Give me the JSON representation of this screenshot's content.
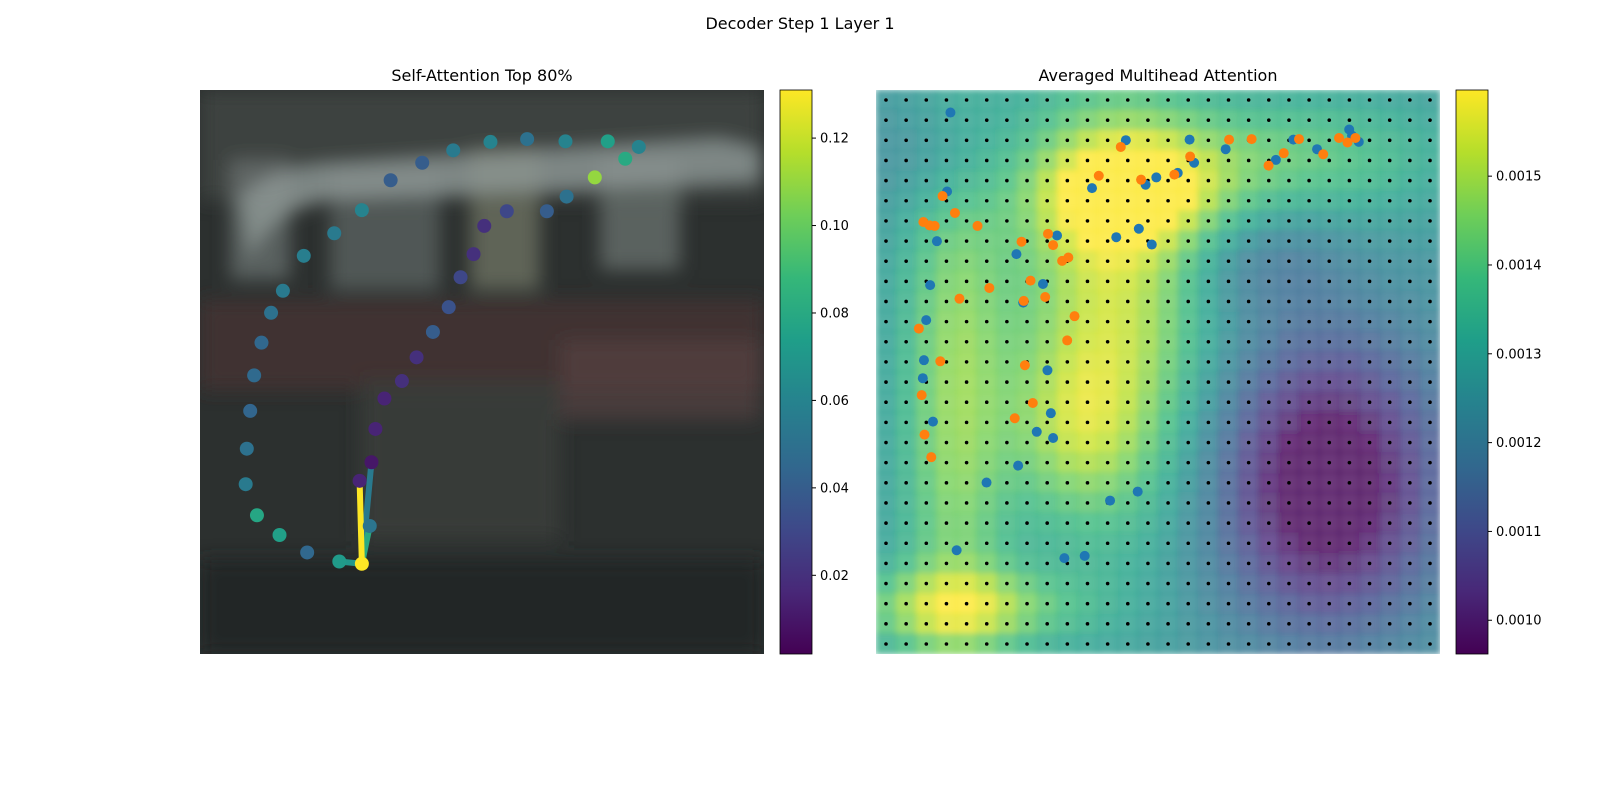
{
  "suptitle": "Decoder Step 1 Layer 1",
  "colors": {
    "viridis": [
      "#440154",
      "#482878",
      "#3e4989",
      "#31688e",
      "#26828e",
      "#1f9e89",
      "#35b779",
      "#6ece58",
      "#b5de2b",
      "#fde725"
    ],
    "orange": "#ff7f0e",
    "blue": "#1f77b4"
  },
  "chart_data": [
    {
      "type": "scatter",
      "title": "Self-Attention Top 80%",
      "background": "blurred street-scene image (vehicle outline)",
      "xlim": [
        0,
        100
      ],
      "ylim": [
        0,
        100
      ],
      "grid": false,
      "colorbar": {
        "min": 0.002,
        "max": 0.131,
        "ticks": [
          "0.02",
          "0.04",
          "0.06",
          "0.08",
          "0.10",
          "0.12"
        ],
        "tick_values": [
          0.02,
          0.04,
          0.06,
          0.08,
          0.1,
          0.12
        ]
      },
      "points": [
        {
          "x": 28.7,
          "y": 16.0,
          "v": 0.131
        },
        {
          "x": 30.1,
          "y": 22.7,
          "v": 0.052
        },
        {
          "x": 30.4,
          "y": 34.0,
          "v": 0.01
        },
        {
          "x": 28.3,
          "y": 30.7,
          "v": 0.015
        },
        {
          "x": 24.7,
          "y": 16.4,
          "v": 0.072
        },
        {
          "x": 19.0,
          "y": 18.0,
          "v": 0.045
        },
        {
          "x": 14.1,
          "y": 21.1,
          "v": 0.075
        },
        {
          "x": 10.1,
          "y": 24.6,
          "v": 0.078
        },
        {
          "x": 8.1,
          "y": 30.1,
          "v": 0.055
        },
        {
          "x": 8.3,
          "y": 36.4,
          "v": 0.05
        },
        {
          "x": 8.9,
          "y": 43.1,
          "v": 0.044
        },
        {
          "x": 9.6,
          "y": 49.4,
          "v": 0.046
        },
        {
          "x": 10.9,
          "y": 55.2,
          "v": 0.045
        },
        {
          "x": 12.6,
          "y": 60.5,
          "v": 0.05
        },
        {
          "x": 14.7,
          "y": 64.4,
          "v": 0.055
        },
        {
          "x": 18.4,
          "y": 70.6,
          "v": 0.057
        },
        {
          "x": 23.8,
          "y": 74.6,
          "v": 0.055
        },
        {
          "x": 28.7,
          "y": 78.7,
          "v": 0.06
        },
        {
          "x": 33.8,
          "y": 84.0,
          "v": 0.04
        },
        {
          "x": 39.4,
          "y": 87.1,
          "v": 0.04
        },
        {
          "x": 44.9,
          "y": 89.3,
          "v": 0.055
        },
        {
          "x": 51.5,
          "y": 90.8,
          "v": 0.06
        },
        {
          "x": 58.0,
          "y": 91.3,
          "v": 0.05
        },
        {
          "x": 64.8,
          "y": 90.9,
          "v": 0.06
        },
        {
          "x": 72.3,
          "y": 90.9,
          "v": 0.075
        },
        {
          "x": 77.8,
          "y": 89.9,
          "v": 0.06
        },
        {
          "x": 75.4,
          "y": 87.8,
          "v": 0.08
        },
        {
          "x": 70.0,
          "y": 84.5,
          "v": 0.11
        },
        {
          "x": 65.0,
          "y": 81.1,
          "v": 0.05
        },
        {
          "x": 61.5,
          "y": 78.5,
          "v": 0.04
        },
        {
          "x": 54.4,
          "y": 78.5,
          "v": 0.03
        },
        {
          "x": 50.4,
          "y": 75.9,
          "v": 0.02
        },
        {
          "x": 48.5,
          "y": 70.9,
          "v": 0.02
        },
        {
          "x": 46.2,
          "y": 66.8,
          "v": 0.03
        },
        {
          "x": 44.1,
          "y": 61.5,
          "v": 0.035
        },
        {
          "x": 41.3,
          "y": 57.1,
          "v": 0.04
        },
        {
          "x": 38.4,
          "y": 52.6,
          "v": 0.02
        },
        {
          "x": 35.8,
          "y": 48.4,
          "v": 0.02
        },
        {
          "x": 32.7,
          "y": 45.3,
          "v": 0.015
        },
        {
          "x": 31.1,
          "y": 39.9,
          "v": 0.015
        }
      ],
      "segments": [
        {
          "from": 0,
          "to": 3,
          "v": 0.131
        },
        {
          "from": 0,
          "to": 2,
          "v": 0.055
        },
        {
          "from": 0,
          "to": 1,
          "v": 0.08
        },
        {
          "from": 0,
          "to": 4,
          "v": 0.07
        }
      ]
    },
    {
      "type": "heatmap",
      "title": "Averaged Multihead Attention",
      "xlim": [
        0,
        100
      ],
      "ylim": [
        0,
        100
      ],
      "grid": false,
      "grid_dots": {
        "cols": 28,
        "rows": 28
      },
      "colorbar": {
        "min": 0.000962,
        "max": 0.001597,
        "ticks": [
          "0.0010",
          "0.0011",
          "0.0012",
          "0.0013",
          "0.0014",
          "0.0015"
        ],
        "tick_values": [
          0.001,
          0.0011,
          0.0012,
          0.0013,
          0.0014,
          0.0015
        ]
      },
      "heat_blobs": [
        {
          "x": 42,
          "y": 62,
          "sx": 12,
          "sy": 28,
          "w": 0.00028
        },
        {
          "x": 45,
          "y": 82,
          "sx": 12,
          "sy": 7,
          "w": 0.00026
        },
        {
          "x": 14,
          "y": 45,
          "sx": 7,
          "sy": 38,
          "w": 0.00021
        },
        {
          "x": 15,
          "y": 8,
          "sx": 14,
          "sy": 5,
          "w": 0.00022
        },
        {
          "x": 75,
          "y": 88,
          "sx": 18,
          "sy": 8,
          "w": 0.00015
        },
        {
          "x": 35,
          "y": 40,
          "sx": 8,
          "sy": 10,
          "w": 0.00012
        },
        {
          "x": 80,
          "y": 30,
          "sx": 14,
          "sy": 18,
          "w": -0.00036
        },
        {
          "x": 68,
          "y": 70,
          "sx": 10,
          "sy": 7,
          "w": -8e-05
        },
        {
          "x": 12,
          "y": 88,
          "sx": 8,
          "sy": 8,
          "w": -8e-05
        }
      ],
      "series": [
        {
          "name": "",
          "color": "#ff7f0e",
          "x": [
            85.0,
            83.6,
            82.1,
            79.3,
            75.0,
            72.3,
            69.6,
            66.6,
            62.6,
            55.7,
            52.9,
            47.0,
            43.4,
            39.5,
            34.1,
            31.4,
            25.8,
            18.0,
            14.0,
            11.8,
            10.4,
            9.5,
            8.4,
            7.6,
            8.1,
            8.6,
            9.8,
            11.4,
            14.8,
            20.1,
            26.2,
            27.8,
            30.0,
            33.9,
            35.2,
            33.0,
            30.5,
            27.4,
            26.4,
            24.6
          ],
          "y": [
            91.5,
            90.7,
            91.5,
            88.6,
            91.3,
            88.8,
            86.6,
            91.3,
            91.2,
            88.2,
            85.0,
            84.1,
            89.9,
            84.8,
            70.3,
            72.5,
            73.1,
            75.9,
            78.2,
            81.2,
            75.9,
            76.0,
            76.6,
            57.7,
            45.9,
            38.9,
            34.9,
            51.9,
            63.0,
            64.9,
            62.6,
            44.5,
            63.3,
            55.6,
            59.9,
            69.7,
            74.5,
            66.2,
            51.2,
            41.8
          ]
        },
        {
          "name": "",
          "color": "#1f77b4",
          "x": [
            84.4,
            85.6,
            83.9,
            74.0,
            78.2,
            70.9,
            62.0,
            56.4,
            53.5,
            48.9,
            49.7,
            55.6,
            46.6,
            38.3,
            44.3,
            47.8,
            42.6,
            32.1,
            24.9,
            29.6,
            26.1,
            30.4,
            31.0,
            31.4,
            28.5,
            25.2,
            19.6,
            14.3,
            10.1,
            8.3,
            8.5,
            8.9,
            9.6,
            10.8,
            12.6,
            13.2,
            33.4,
            41.5,
            46.4,
            37.0
          ],
          "y": [
            91.9,
            90.8,
            93.0,
            91.2,
            89.5,
            87.6,
            89.5,
            87.1,
            85.3,
            72.6,
            84.5,
            91.2,
            75.4,
            82.6,
            91.1,
            83.2,
            73.9,
            74.2,
            70.9,
            65.6,
            62.3,
            50.3,
            42.7,
            38.3,
            39.4,
            33.4,
            30.4,
            18.4,
            41.2,
            48.9,
            52.1,
            59.2,
            65.4,
            73.2,
            82.0,
            96.0,
            17.0,
            27.2,
            28.8,
            17.4
          ]
        }
      ]
    }
  ]
}
